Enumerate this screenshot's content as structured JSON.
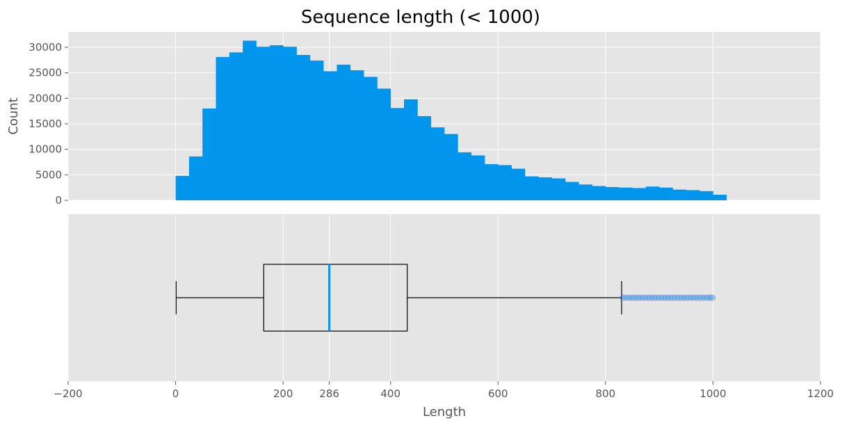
{
  "figure": {
    "title": "Sequence length (< 1000)"
  },
  "chart_data": [
    {
      "type": "histogram",
      "panel": "top",
      "ylabel": "Count",
      "xlabel": "",
      "xlim": [
        -200,
        1200
      ],
      "ylim": [
        0,
        33000
      ],
      "yticks": [
        0,
        5000,
        10000,
        15000,
        20000,
        25000,
        30000
      ],
      "grid": true,
      "bar_color": "#0195EE",
      "bin_width": 25,
      "bin_start": 0,
      "values": [
        4800,
        8600,
        18000,
        28100,
        29000,
        31300,
        30100,
        30400,
        30100,
        28500,
        27400,
        25300,
        26600,
        25500,
        24200,
        21900,
        18100,
        19800,
        16500,
        14300,
        13000,
        9400,
        8800,
        7100,
        6900,
        6200,
        4700,
        4500,
        4300,
        3600,
        3100,
        2800,
        2600,
        2500,
        2400,
        2700,
        2500,
        2100,
        2000,
        1800,
        1100
      ]
    },
    {
      "type": "boxplot",
      "panel": "bottom",
      "xlabel": "Length",
      "xlim": [
        -200,
        1200
      ],
      "xticks": [
        -200,
        0,
        200,
        286,
        400,
        600,
        800,
        1000,
        1200
      ],
      "xtick_labels": [
        "−200",
        "0",
        "200",
        "286",
        "400",
        "600",
        "800",
        "1000",
        "1200"
      ],
      "grid": true,
      "whisker_low": 1,
      "q1": 164,
      "median": 286,
      "q3": 431,
      "whisker_high": 830,
      "median_color": "#0195EE",
      "outlier_color": "#0195EE",
      "outliers": [
        832,
        838,
        844,
        850,
        856,
        862,
        868,
        874,
        880,
        886,
        892,
        898,
        904,
        910,
        916,
        922,
        928,
        934,
        940,
        946,
        952,
        958,
        964,
        970,
        976,
        982,
        988,
        994,
        999
      ]
    }
  ]
}
